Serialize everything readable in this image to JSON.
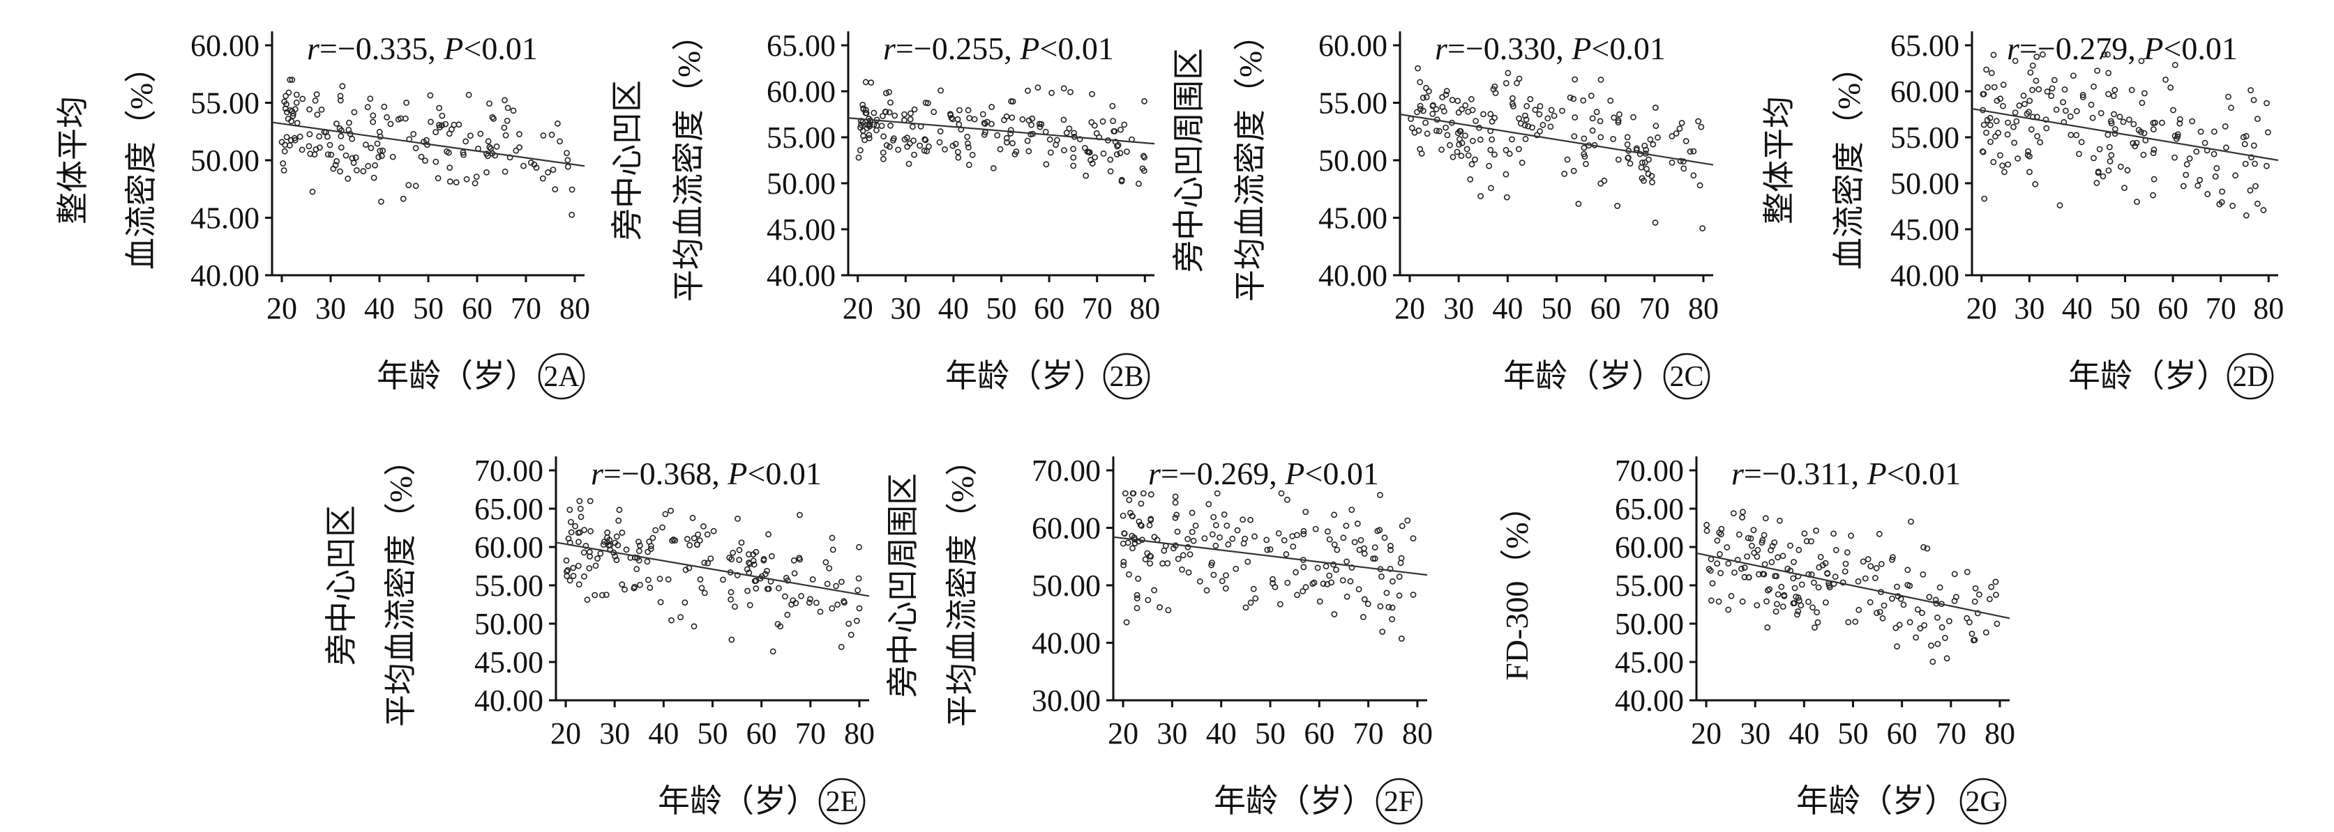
{
  "chart_data": [
    {
      "id": "2A",
      "type": "scatter",
      "panel_label": "2A",
      "ylabel": [
        "整体平均",
        "血流密度（%）"
      ],
      "xlabel": "年龄（岁）",
      "stat": {
        "r": "r=−0.335,",
        "p": "P<0.01"
      },
      "x_ticks": [
        "20",
        "30",
        "40",
        "50",
        "60",
        "70",
        "80"
      ],
      "y_ticks": [
        "40.00",
        "45.00",
        "50.00",
        "55.00",
        "60.00"
      ],
      "xlim": [
        18,
        82
      ],
      "ylim": [
        40,
        60
      ],
      "trend": {
        "x": [
          18,
          82
        ],
        "y": [
          53.3,
          49.5
        ]
      },
      "cloud": {
        "n": 180,
        "sd": 2.2,
        "y_min": 41,
        "y_max": 57,
        "seed": 11
      }
    },
    {
      "id": "2B",
      "type": "scatter",
      "panel_label": "2B",
      "ylabel": [
        "旁中心凹区",
        "平均血流密度（%）"
      ],
      "xlabel": "年龄（岁）",
      "stat": {
        "r": "r=−0.255,",
        "p": "P<0.01"
      },
      "x_ticks": [
        "20",
        "30",
        "40",
        "50",
        "60",
        "70",
        "80"
      ],
      "y_ticks": [
        "40.00",
        "45.00",
        "50.00",
        "55.00",
        "60.00",
        "65.00"
      ],
      "xlim": [
        18,
        82
      ],
      "ylim": [
        40,
        65
      ],
      "trend": {
        "x": [
          18,
          82
        ],
        "y": [
          57.1,
          54.3
        ]
      },
      "cloud": {
        "n": 190,
        "sd": 2.0,
        "y_min": 43,
        "y_max": 61,
        "seed": 23
      }
    },
    {
      "id": "2C",
      "type": "scatter",
      "panel_label": "2C",
      "ylabel": [
        "旁中心凹周围区",
        "平均血流密度（%）"
      ],
      "xlabel": "年龄（岁）",
      "stat": {
        "r": "r=−0.330,",
        "p": "P<0.01"
      },
      "x_ticks": [
        "20",
        "30",
        "40",
        "50",
        "60",
        "70",
        "80"
      ],
      "y_ticks": [
        "40.00",
        "45.00",
        "50.00",
        "55.00",
        "60.00"
      ],
      "xlim": [
        18,
        82
      ],
      "ylim": [
        40,
        60
      ],
      "trend": {
        "x": [
          18,
          82
        ],
        "y": [
          54.0,
          49.6
        ]
      },
      "cloud": {
        "n": 190,
        "sd": 2.4,
        "y_min": 41,
        "y_max": 58,
        "seed": 37
      }
    },
    {
      "id": "2D",
      "type": "scatter",
      "panel_label": "2D",
      "ylabel": [
        "整体平均",
        "血流密度（%）"
      ],
      "xlabel": "年龄（岁）",
      "stat": {
        "r": "r=−0.279,",
        "p": "P<0.01"
      },
      "x_ticks": [
        "20",
        "30",
        "40",
        "50",
        "60",
        "70",
        "80"
      ],
      "y_ticks": [
        "40.00",
        "45.00",
        "50.00",
        "55.00",
        "60.00",
        "65.00"
      ],
      "xlim": [
        18,
        82
      ],
      "ylim": [
        40,
        65
      ],
      "trend": {
        "x": [
          18,
          82
        ],
        "y": [
          58.1,
          52.5
        ]
      },
      "cloud": {
        "n": 190,
        "sd": 3.8,
        "y_min": 43,
        "y_max": 64,
        "seed": 41
      }
    },
    {
      "id": "2E",
      "type": "scatter",
      "panel_label": "2E",
      "ylabel": [
        "旁中心凹区",
        "平均血流密度（%）"
      ],
      "xlabel": "年龄（岁）",
      "stat": {
        "r": "r=−0.368,",
        "p": "P<0.01"
      },
      "x_ticks": [
        "20",
        "30",
        "40",
        "50",
        "60",
        "70",
        "80"
      ],
      "y_ticks": [
        "40.00",
        "45.00",
        "50.00",
        "55.00",
        "60.00",
        "65.00",
        "70.00"
      ],
      "xlim": [
        18,
        82
      ],
      "ylim": [
        40,
        70
      ],
      "trend": {
        "x": [
          18,
          82
        ],
        "y": [
          60.6,
          53.6
        ]
      },
      "cloud": {
        "n": 190,
        "sd": 3.3,
        "y_min": 44,
        "y_max": 66,
        "seed": 53
      }
    },
    {
      "id": "2F",
      "type": "scatter",
      "panel_label": "2F",
      "ylabel": [
        "旁中心凹周围区",
        "平均血流密度（%）"
      ],
      "xlabel": "年龄（岁）",
      "stat": {
        "r": "r=−0.269,",
        "p": "P<0.01"
      },
      "x_ticks": [
        "20",
        "30",
        "40",
        "50",
        "60",
        "70",
        "80"
      ],
      "y_ticks": [
        "30.00",
        "40.00",
        "50.00",
        "60.00",
        "70.00"
      ],
      "xlim": [
        18,
        82
      ],
      "ylim": [
        30,
        70
      ],
      "trend": {
        "x": [
          18,
          82
        ],
        "y": [
          58.4,
          51.8
        ]
      },
      "cloud": {
        "n": 190,
        "sd": 5.0,
        "y_min": 38,
        "y_max": 66,
        "seed": 67
      }
    },
    {
      "id": "2G",
      "type": "scatter",
      "panel_label": "2G",
      "ylabel": [
        "FD-300（%）"
      ],
      "xlabel": "年龄（岁）",
      "stat": {
        "r": "r=−0.311,",
        "p": "P<0.01"
      },
      "x_ticks": [
        "20",
        "30",
        "40",
        "50",
        "60",
        "70",
        "80"
      ],
      "y_ticks": [
        "40.00",
        "45.00",
        "50.00",
        "55.00",
        "60.00",
        "65.00",
        "70.00"
      ],
      "xlim": [
        18,
        82
      ],
      "ylim": [
        40,
        70
      ],
      "trend": {
        "x": [
          18,
          82
        ],
        "y": [
          59.2,
          50.7
        ]
      },
      "cloud": {
        "n": 190,
        "sd": 3.2,
        "y_min": 43,
        "y_max": 66,
        "seed": 79
      }
    }
  ]
}
